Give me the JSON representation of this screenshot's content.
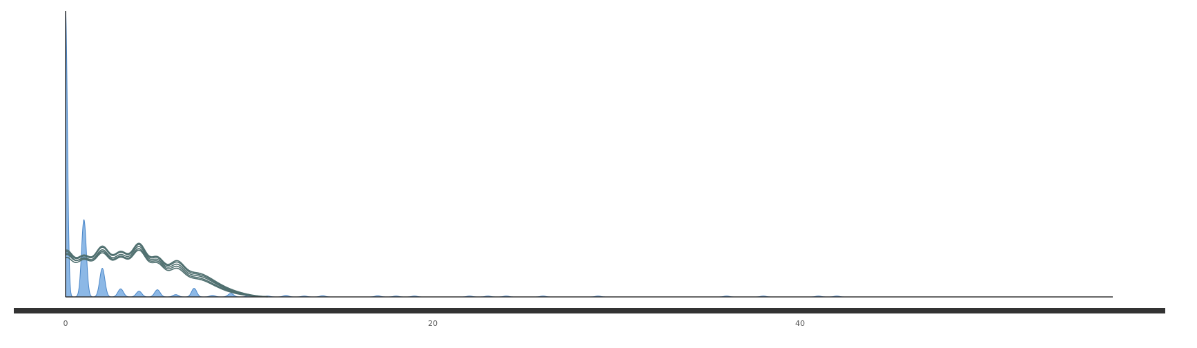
{
  "chart_data": {
    "type": "area",
    "title": "",
    "xlabel": "",
    "ylabel": "",
    "xlim": [
      0,
      57
    ],
    "ylim": [
      0,
      1
    ],
    "x_ticks": [
      0,
      20,
      40
    ],
    "y_ticks": [],
    "grid": false,
    "legend": "none",
    "colors": {
      "fill": "#8cb8e6",
      "fill_stroke": "#4a86c8",
      "lines": "#4f6f6f",
      "axis": "#333333",
      "scrollbar": "#333333"
    },
    "fill_series": {
      "peaks": [
        {
          "x": 0,
          "y": 1.0,
          "w": 0.1
        },
        {
          "x": 1,
          "y": 0.27,
          "w": 0.13
        },
        {
          "x": 2,
          "y": 0.1,
          "w": 0.14
        },
        {
          "x": 3,
          "y": 0.028,
          "w": 0.15
        },
        {
          "x": 4,
          "y": 0.02,
          "w": 0.15
        },
        {
          "x": 5,
          "y": 0.025,
          "w": 0.15
        },
        {
          "x": 6,
          "y": 0.008,
          "w": 0.15
        },
        {
          "x": 7,
          "y": 0.03,
          "w": 0.14
        },
        {
          "x": 8,
          "y": 0.005,
          "w": 0.15
        },
        {
          "x": 9,
          "y": 0.012,
          "w": 0.15
        },
        {
          "x": 10,
          "y": 0.005,
          "w": 0.15
        },
        {
          "x": 11,
          "y": 0.003,
          "w": 0.15
        },
        {
          "x": 12,
          "y": 0.005,
          "w": 0.15
        },
        {
          "x": 13,
          "y": 0.003,
          "w": 0.15
        },
        {
          "x": 14,
          "y": 0.004,
          "w": 0.15
        },
        {
          "x": 17,
          "y": 0.004,
          "w": 0.15
        },
        {
          "x": 18,
          "y": 0.003,
          "w": 0.15
        },
        {
          "x": 19,
          "y": 0.003,
          "w": 0.15
        },
        {
          "x": 22,
          "y": 0.003,
          "w": 0.15
        },
        {
          "x": 23,
          "y": 0.003,
          "w": 0.15
        },
        {
          "x": 24,
          "y": 0.003,
          "w": 0.15
        },
        {
          "x": 26,
          "y": 0.003,
          "w": 0.15
        },
        {
          "x": 29,
          "y": 0.003,
          "w": 0.15
        },
        {
          "x": 36,
          "y": 0.003,
          "w": 0.15
        },
        {
          "x": 38,
          "y": 0.003,
          "w": 0.15
        },
        {
          "x": 41,
          "y": 0.003,
          "w": 0.15
        },
        {
          "x": 42,
          "y": 0.003,
          "w": 0.15
        }
      ]
    },
    "line_series": [
      {
        "values": [
          0.13,
          0.115,
          0.145,
          0.125,
          0.155,
          0.11,
          0.075,
          0.045,
          0.03,
          0.014,
          0.005
        ]
      },
      {
        "values": [
          0.14,
          0.12,
          0.15,
          0.13,
          0.162,
          0.115,
          0.08,
          0.048,
          0.034,
          0.016,
          0.006
        ]
      },
      {
        "values": [
          0.15,
          0.125,
          0.158,
          0.137,
          0.168,
          0.12,
          0.085,
          0.052,
          0.036,
          0.018,
          0.007
        ]
      },
      {
        "values": [
          0.145,
          0.118,
          0.14,
          0.122,
          0.15,
          0.105,
          0.07,
          0.042,
          0.028,
          0.012,
          0.004
        ]
      },
      {
        "values": [
          0.155,
          0.128,
          0.162,
          0.14,
          0.172,
          0.124,
          0.088,
          0.055,
          0.038,
          0.02,
          0.008
        ]
      }
    ],
    "line_peak_x": [
      0,
      0.6,
      1,
      1.5,
      2,
      2.5,
      3,
      4,
      5,
      6,
      8
    ]
  }
}
